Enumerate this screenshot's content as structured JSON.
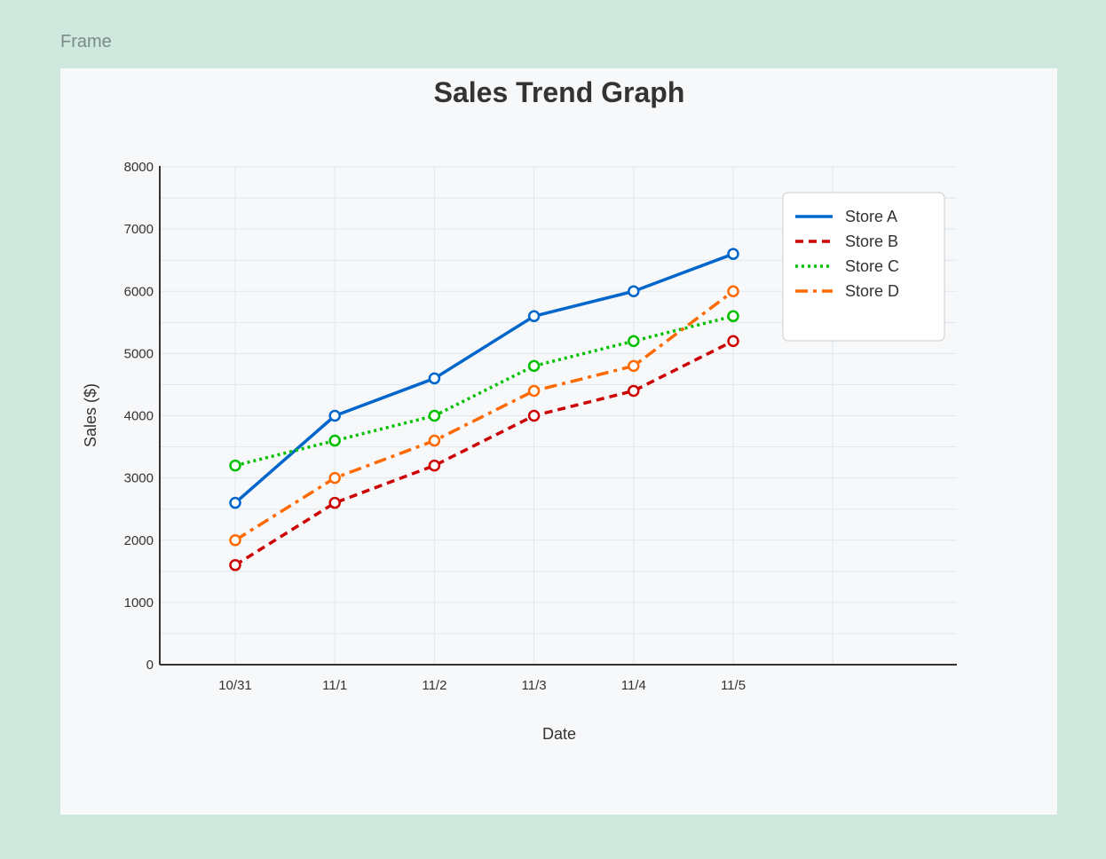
{
  "frame": {
    "label": "Frame"
  },
  "chart_data": {
    "type": "line",
    "title": "Sales Trend Graph",
    "xlabel": "Date",
    "ylabel": "Sales ($)",
    "categories": [
      "10/31",
      "11/1",
      "11/2",
      "11/3",
      "11/4",
      "11/5"
    ],
    "ylim": [
      0,
      8000
    ],
    "y_ticks": [
      0,
      1000,
      2000,
      3000,
      4000,
      5000,
      6000,
      7000,
      8000
    ],
    "grid": true,
    "legend_position": "top-right",
    "series": [
      {
        "name": "Store A",
        "values": [
          2600,
          4000,
          4600,
          5600,
          6000,
          6600
        ],
        "color": "#0066cc",
        "dash": "solid"
      },
      {
        "name": "Store B",
        "values": [
          1600,
          2600,
          3200,
          4000,
          4400,
          5200
        ],
        "color": "#cc0000",
        "dash": "dashed"
      },
      {
        "name": "Store C",
        "values": [
          3200,
          3600,
          4000,
          4800,
          5200,
          5600
        ],
        "color": "#00c000",
        "dash": "dotted"
      },
      {
        "name": "Store D",
        "values": [
          2000,
          3000,
          3600,
          4400,
          4800,
          6000
        ],
        "color": "#ff6a00",
        "dash": "dashdot"
      }
    ]
  }
}
